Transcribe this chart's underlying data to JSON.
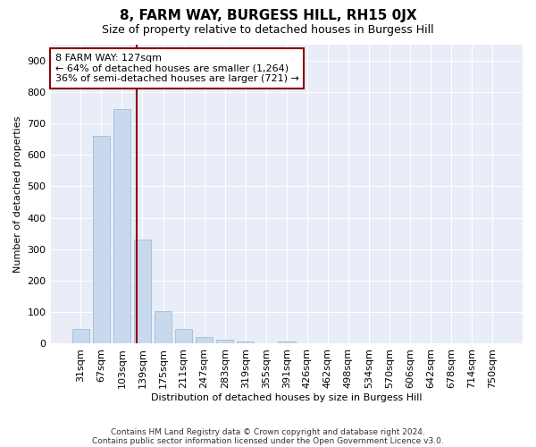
{
  "title1": "8, FARM WAY, BURGESS HILL, RH15 0JX",
  "title2": "Size of property relative to detached houses in Burgess Hill",
  "xlabel": "Distribution of detached houses by size in Burgess Hill",
  "ylabel": "Number of detached properties",
  "categories": [
    "31sqm",
    "67sqm",
    "103sqm",
    "139sqm",
    "175sqm",
    "211sqm",
    "247sqm",
    "283sqm",
    "319sqm",
    "355sqm",
    "391sqm",
    "426sqm",
    "462sqm",
    "498sqm",
    "534sqm",
    "570sqm",
    "606sqm",
    "642sqm",
    "678sqm",
    "714sqm",
    "750sqm"
  ],
  "values": [
    47,
    661,
    745,
    330,
    104,
    48,
    22,
    13,
    8,
    0,
    6,
    0,
    0,
    0,
    0,
    0,
    0,
    0,
    0,
    0,
    0
  ],
  "bar_color": "#c8d9ee",
  "bar_edge_color": "#a0bcd8",
  "vline_color": "#8b0000",
  "vline_pos": 2.72,
  "annotation_line1": "8 FARM WAY: 127sqm",
  "annotation_line2": "← 64% of detached houses are smaller (1,264)",
  "annotation_line3": "36% of semi-detached houses are larger (721) →",
  "annotation_box_color": "white",
  "annotation_box_edge": "#8b0000",
  "ylim": [
    0,
    950
  ],
  "yticks": [
    0,
    100,
    200,
    300,
    400,
    500,
    600,
    700,
    800,
    900
  ],
  "footer1": "Contains HM Land Registry data © Crown copyright and database right 2024.",
  "footer2": "Contains public sector information licensed under the Open Government Licence v3.0.",
  "bg_color": "#ffffff",
  "plot_bg_color": "#e8edf8",
  "grid_color": "#ffffff",
  "title1_fontsize": 11,
  "title2_fontsize": 9,
  "xlabel_fontsize": 8,
  "ylabel_fontsize": 8,
  "tick_fontsize": 8,
  "annotation_fontsize": 8
}
